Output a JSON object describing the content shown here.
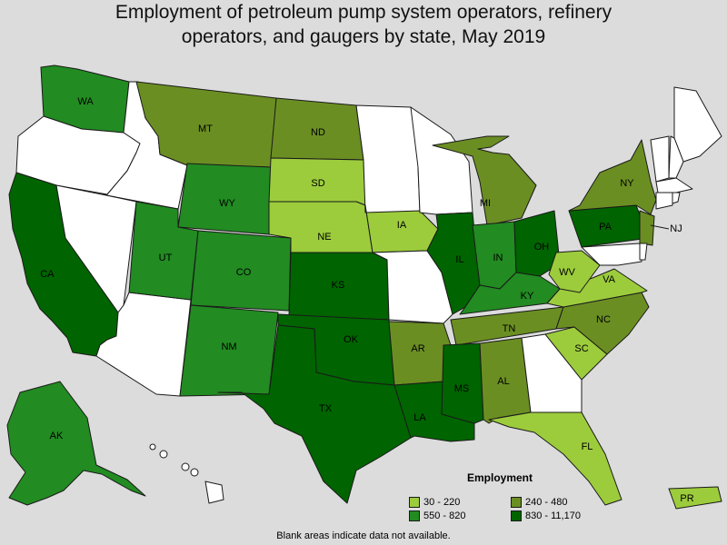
{
  "title": {
    "line1": "Employment of petroleum pump system operators, refinery",
    "line2": "operators, and gaugers by state, May 2019"
  },
  "legend": {
    "title": "Employment",
    "items": [
      {
        "label": "30 - 220",
        "color": "#9ccc3c"
      },
      {
        "label": "240 - 480",
        "color": "#6b8e23"
      },
      {
        "label": "550 - 820",
        "color": "#228b22"
      },
      {
        "label": "830 - 11,170",
        "color": "#006400"
      }
    ]
  },
  "colors": {
    "no_data": "#ffffff",
    "background": "#dcdcdc"
  },
  "footnote": "Blank areas indicate data not available.",
  "states": [
    {
      "code": "WA",
      "class": 2
    },
    {
      "code": "OR",
      "class": -1
    },
    {
      "code": "CA",
      "class": 3
    },
    {
      "code": "ID",
      "class": -1
    },
    {
      "code": "NV",
      "class": -1
    },
    {
      "code": "AZ",
      "class": -1
    },
    {
      "code": "MT",
      "class": 1
    },
    {
      "code": "WY",
      "class": 2
    },
    {
      "code": "UT",
      "class": 2
    },
    {
      "code": "CO",
      "class": 2
    },
    {
      "code": "NM",
      "class": 2
    },
    {
      "code": "ND",
      "class": 1
    },
    {
      "code": "SD",
      "class": 0
    },
    {
      "code": "NE",
      "class": 0
    },
    {
      "code": "KS",
      "class": 3
    },
    {
      "code": "OK",
      "class": 3
    },
    {
      "code": "TX",
      "class": 3
    },
    {
      "code": "MN",
      "class": -1
    },
    {
      "code": "IA",
      "class": 0
    },
    {
      "code": "MO",
      "class": -1
    },
    {
      "code": "AR",
      "class": 1
    },
    {
      "code": "LA",
      "class": 3
    },
    {
      "code": "WI",
      "class": -1
    },
    {
      "code": "IL",
      "class": 3
    },
    {
      "code": "MI",
      "class": 1
    },
    {
      "code": "IN",
      "class": 2
    },
    {
      "code": "OH",
      "class": 3
    },
    {
      "code": "KY",
      "class": 2
    },
    {
      "code": "TN",
      "class": 1
    },
    {
      "code": "MS",
      "class": 3
    },
    {
      "code": "AL",
      "class": 1
    },
    {
      "code": "GA",
      "class": -1
    },
    {
      "code": "FL",
      "class": 0
    },
    {
      "code": "SC",
      "class": 0
    },
    {
      "code": "NC",
      "class": 1
    },
    {
      "code": "VA",
      "class": 0
    },
    {
      "code": "WV",
      "class": 0
    },
    {
      "code": "PA",
      "class": 3
    },
    {
      "code": "NY",
      "class": 1
    },
    {
      "code": "NJ",
      "class": 1
    },
    {
      "code": "MD",
      "class": -1
    },
    {
      "code": "DE",
      "class": -1
    },
    {
      "code": "ME",
      "class": -1
    },
    {
      "code": "NH",
      "class": -1
    },
    {
      "code": "VT",
      "class": -1
    },
    {
      "code": "MA",
      "class": -1
    },
    {
      "code": "CT",
      "class": -1
    },
    {
      "code": "RI",
      "class": -1
    },
    {
      "code": "AK",
      "class": 2
    },
    {
      "code": "HI",
      "class": -1
    },
    {
      "code": "PR",
      "class": 0
    }
  ]
}
